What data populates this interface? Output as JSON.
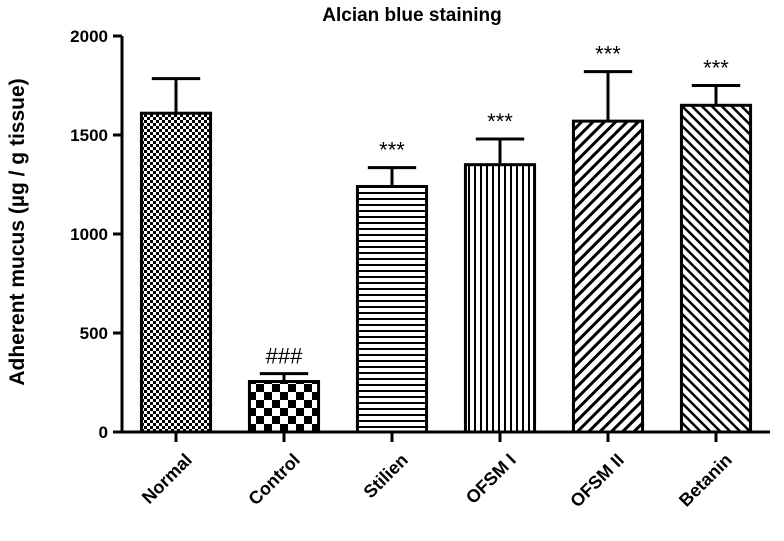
{
  "chart_data": {
    "type": "bar",
    "title": "Alcian blue staining",
    "xlabel": "",
    "ylabel": "Adherent mucus (µg / g tissue)",
    "ylim": [
      0,
      2000
    ],
    "yticks": [
      "0",
      "500",
      "1000",
      "1500",
      "2000"
    ],
    "grid": false,
    "categories": [
      "Normal",
      "Control",
      "Stilien",
      "OFSM I",
      "OFSM II",
      "Betanin"
    ],
    "values": [
      1610,
      255,
      1240,
      1350,
      1570,
      1650
    ],
    "errors": [
      175,
      40,
      95,
      130,
      250,
      100
    ],
    "annotations": [
      "",
      "###",
      "***",
      "***",
      "***",
      "***"
    ],
    "patterns": [
      "fine-checker",
      "large-checker",
      "horizontal-lines",
      "vertical-lines",
      "diagonal-lines",
      "diagonal-lines-fine"
    ]
  }
}
